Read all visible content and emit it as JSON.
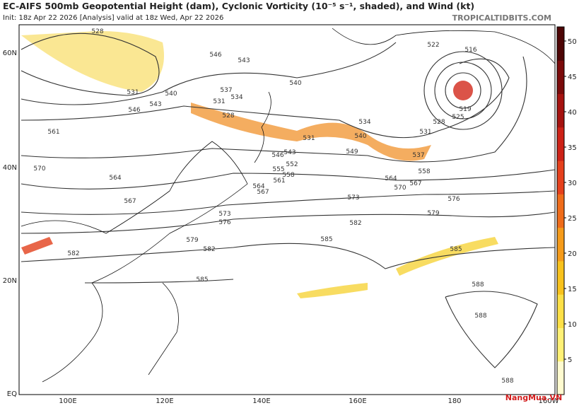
{
  "header": {
    "title": "EC-AIFS 500mb Geopotential Height (dam), Cyclonic Vorticity (10⁻⁵ s⁻¹, shaded), and Wind (kt)",
    "subtitle": "Init: 18z Apr 22 2026   [Analysis]   valid at 18z Wed, Apr 22 2026",
    "credit": "TROPICALTIDBITS.COM"
  },
  "map": {
    "lat_labels": [
      "60N",
      "40N",
      "20N",
      "EQ"
    ],
    "lon_labels": [
      "100E",
      "120E",
      "140E",
      "160E",
      "180",
      "160W"
    ],
    "contour_labels": [
      "528",
      "546",
      "543",
      "540",
      "537",
      "534",
      "531",
      "528",
      "531",
      "540",
      "543",
      "546",
      "561",
      "570",
      "564",
      "567",
      "573",
      "576",
      "579",
      "582",
      "582",
      "585",
      "585",
      "585",
      "579",
      "576",
      "582",
      "573",
      "570",
      "567",
      "564",
      "561",
      "558",
      "555",
      "552",
      "549",
      "546",
      "543",
      "540",
      "537",
      "534",
      "531",
      "531",
      "528",
      "525",
      "519",
      "522",
      "516",
      "558",
      "564",
      "567",
      "588",
      "588",
      "588"
    ]
  },
  "colorbar": {
    "ticks": [
      5,
      10,
      15,
      20,
      25,
      30,
      35,
      40,
      45,
      50
    ]
  },
  "watermark": "NangMua.VN"
}
